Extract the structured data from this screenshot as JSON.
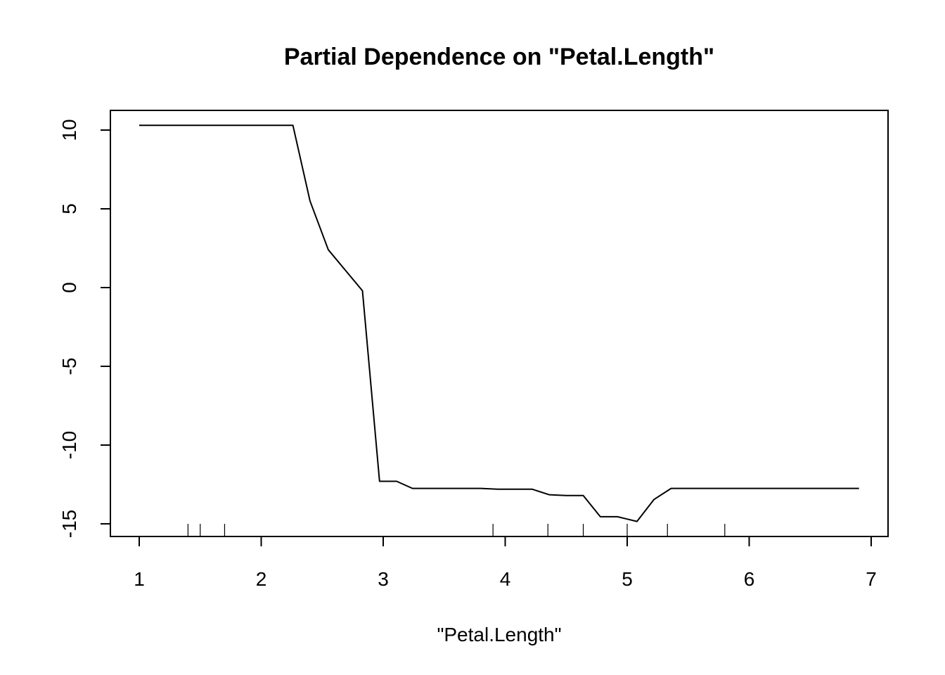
{
  "chart_data": {
    "type": "line",
    "title": "Partial Dependence on \"Petal.Length\"",
    "xlabel": "\"Petal.Length\"",
    "ylabel": "",
    "xlim": [
      1,
      7
    ],
    "ylim": [
      -15,
      10
    ],
    "x_ticks": [
      1,
      2,
      3,
      4,
      5,
      6,
      7
    ],
    "y_ticks": [
      -15,
      -10,
      -5,
      0,
      5,
      10
    ],
    "x_tick_labels": [
      "1",
      "2",
      "3",
      "4",
      "5",
      "6",
      "7"
    ],
    "y_tick_labels": [
      "-15",
      "-10",
      "-5",
      "0",
      "5",
      "10"
    ],
    "grid": false,
    "series": [
      {
        "x": [
          1.0,
          2.26,
          2.4,
          2.55,
          2.69,
          2.83,
          2.97,
          3.11,
          3.24,
          3.38,
          3.52,
          3.66,
          3.8,
          3.94,
          4.08,
          4.22,
          4.36,
          4.5,
          4.64,
          4.78,
          4.92,
          5.08,
          5.22,
          5.36,
          5.5,
          5.64,
          5.78,
          5.92,
          6.06,
          6.2,
          6.34,
          6.48,
          6.62,
          6.76,
          6.9
        ],
        "y": [
          10.3,
          10.3,
          5.5,
          2.4,
          1.1,
          -0.2,
          -12.3,
          -12.3,
          -12.75,
          -12.75,
          -12.75,
          -12.75,
          -12.75,
          -12.8,
          -12.8,
          -12.8,
          -13.15,
          -13.2,
          -13.2,
          -14.55,
          -14.55,
          -14.85,
          -13.45,
          -12.75,
          -12.75,
          -12.75,
          -12.75,
          -12.75,
          -12.75,
          -12.75,
          -12.75,
          -12.75,
          -12.75,
          -12.75,
          -12.75
        ]
      }
    ],
    "rug": [
      1.4,
      1.5,
      1.7,
      3.9,
      4.35,
      4.64,
      5.0,
      5.33,
      5.8
    ]
  }
}
